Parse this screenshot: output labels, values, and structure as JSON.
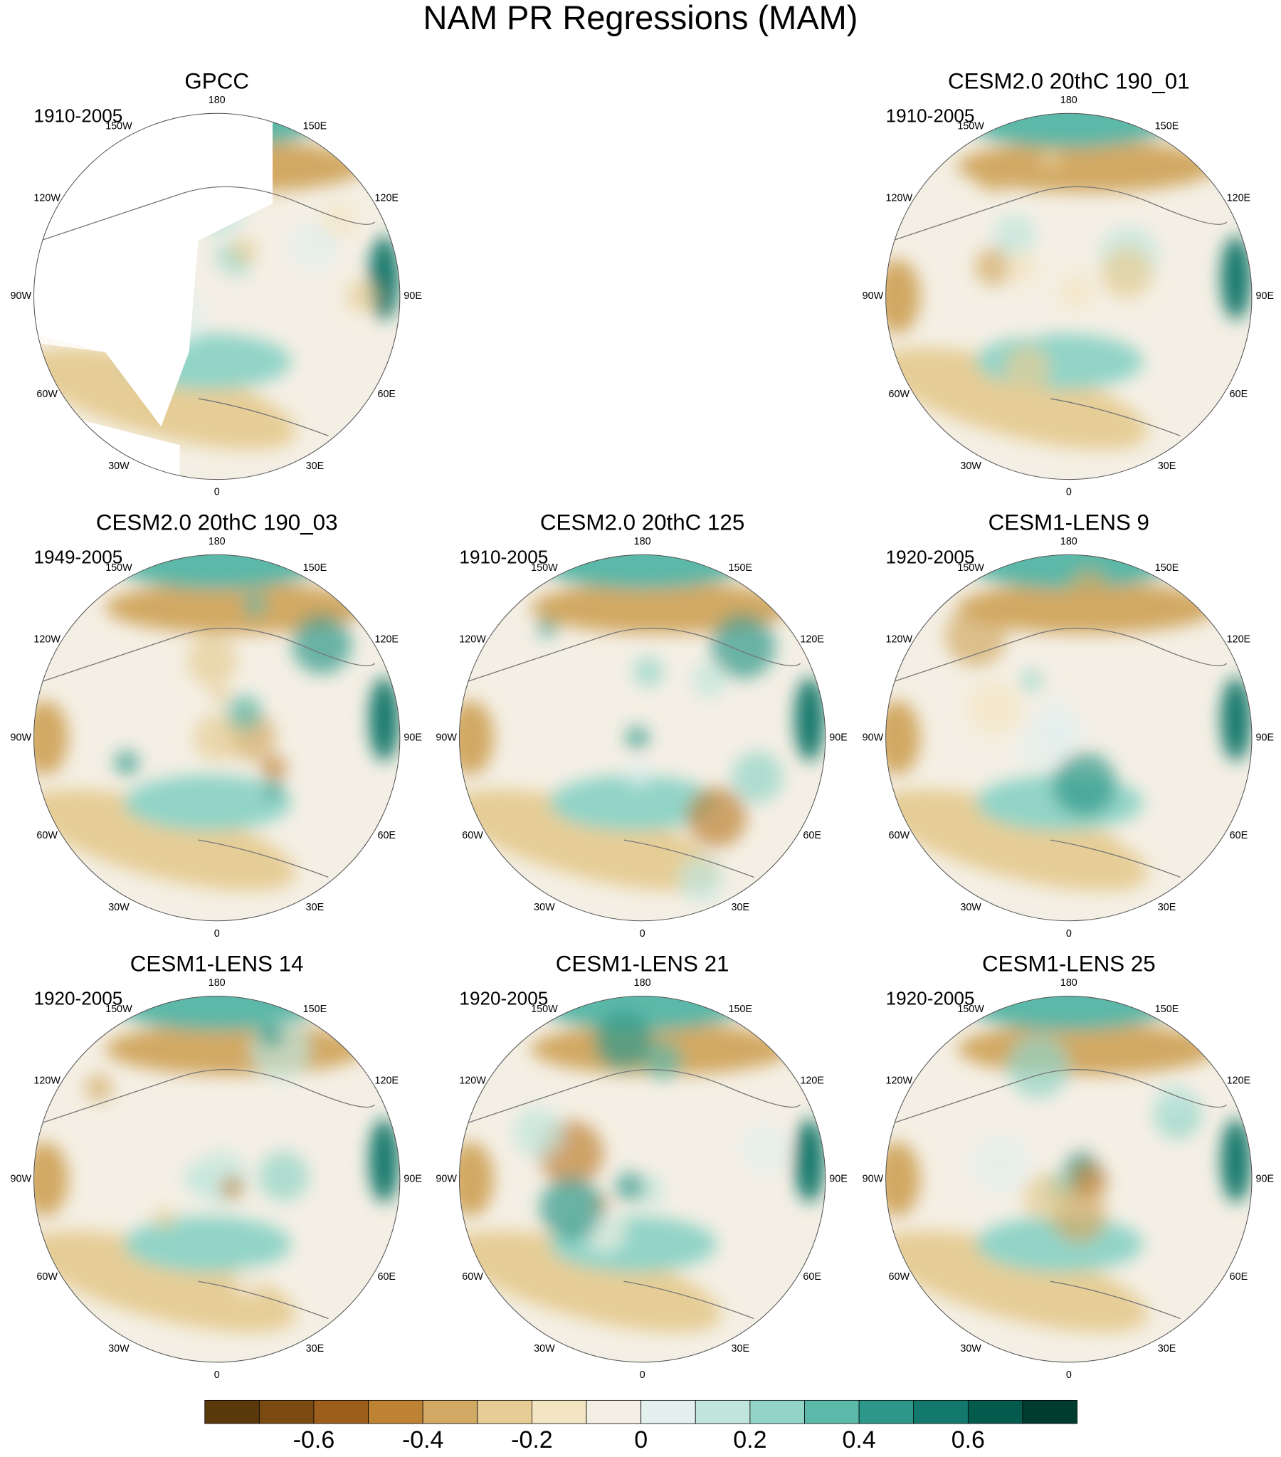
{
  "title": "NAM PR Regressions (MAM)",
  "longitude_labels": [
    "180",
    "150E",
    "120E",
    "90E",
    "60E",
    "30E",
    "0",
    "30W",
    "60W",
    "90W",
    "120W",
    "150W"
  ],
  "panel_rows": [
    [
      {
        "title": "GPCC",
        "period": "1910-2005"
      },
      null,
      {
        "title": "CESM2.0 20thC 190_01",
        "period": "1910-2005"
      }
    ],
    [
      {
        "title": "CESM2.0 20thC 190_03",
        "period": "1949-2005"
      },
      {
        "title": "CESM2.0 20thC 125",
        "period": "1910-2005"
      },
      {
        "title": "CESM1-LENS 9",
        "period": "1920-2005"
      }
    ],
    [
      {
        "title": "CESM1-LENS 14",
        "period": "1920-2005"
      },
      {
        "title": "CESM1-LENS 21",
        "period": "1920-2005"
      },
      {
        "title": "CESM1-LENS 25",
        "period": "1920-2005"
      }
    ]
  ],
  "colorbar": {
    "colors": [
      "#5a3a0c",
      "#7a4a10",
      "#9c5e1a",
      "#bd8234",
      "#d2a964",
      "#e6cd96",
      "#f3e4c2",
      "#f4efe4",
      "#e3f0ee",
      "#bfe5dd",
      "#92d4c7",
      "#5cb8a8",
      "#2e988a",
      "#14796d",
      "#035a4d",
      "#003c30"
    ],
    "lim": [
      -0.8,
      0.8
    ],
    "ticks": [
      -0.6,
      -0.4,
      -0.2,
      0,
      0.2,
      0.4,
      0.6
    ]
  }
}
